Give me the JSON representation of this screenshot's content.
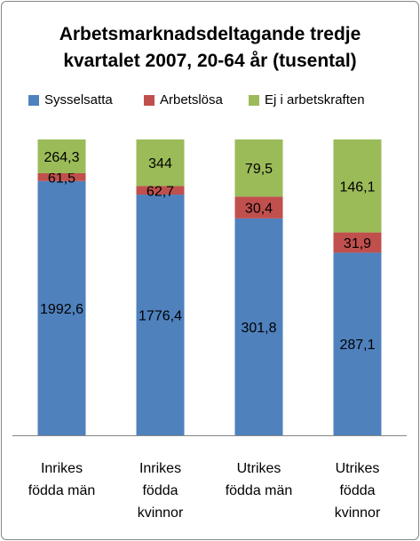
{
  "chart_data": {
    "type": "bar",
    "stacked": true,
    "title_lines": [
      "Arbetsmarknadsdeltagande tredje",
      "kvartalet 2007, 20-64 år (tusental)"
    ],
    "categories": [
      [
        "Inrikes",
        "födda män"
      ],
      [
        "Inrikes",
        "födda",
        "kvinnor"
      ],
      [
        "Utrikes",
        "födda män"
      ],
      [
        "Utrikes",
        "födda",
        "kvinnor"
      ]
    ],
    "series": [
      {
        "name": "Sysselsatta",
        "color": "#4f81bd",
        "values": [
          1992.6,
          1776.4,
          301.8,
          287.1
        ],
        "labels": [
          "1992,6",
          "1776,4",
          "301,8",
          "287,1"
        ]
      },
      {
        "name": "Arbetslösa",
        "color": "#c0504d",
        "values": [
          61.5,
          62.7,
          30.4,
          31.9
        ],
        "labels": [
          "61,5",
          "62,7",
          "30,4",
          "31,9"
        ]
      },
      {
        "name": "Ej i arbetskraften",
        "color": "#9bbb59",
        "values": [
          264.3,
          344,
          79.5,
          146.1
        ],
        "labels": [
          "264,3",
          "344",
          "79,5",
          "146,1"
        ]
      }
    ],
    "normalization": "percent_of_total",
    "legend_position": "top",
    "grid": false
  }
}
